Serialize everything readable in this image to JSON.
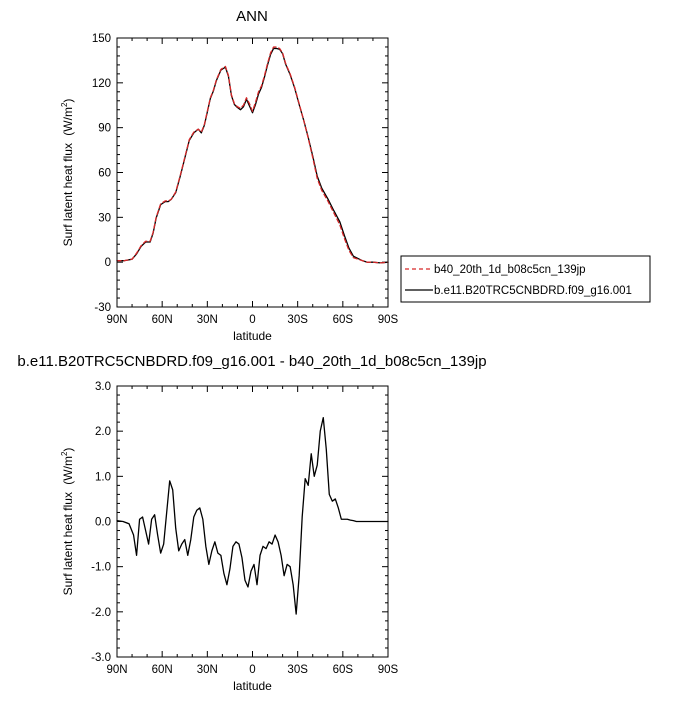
{
  "chart_data": [
    {
      "type": "line",
      "title": "ANN",
      "xlabel": "latitude",
      "ylabel": "Surf latent heat flux",
      "ylabel_unit_base": "(W/m",
      "ylabel_unit_exp": "2",
      "ylabel_unit_close": ")",
      "xlim": [
        90,
        -90
      ],
      "ylim": [
        -30,
        150
      ],
      "x_ticks": [
        90,
        60,
        30,
        0,
        -30,
        -60,
        -90
      ],
      "x_tick_labels": [
        "90N",
        "60N",
        "30N",
        "0",
        "30S",
        "60S",
        "90S"
      ],
      "y_ticks": [
        -30,
        0,
        30,
        60,
        90,
        120,
        150
      ],
      "y_tick_labels": [
        "-30",
        "0",
        "30",
        "60",
        "90",
        "120",
        "150"
      ],
      "legend": {
        "placement": "right",
        "border": true
      },
      "series": [
        {
          "name": "b40_20th_1d_b08c5cn_139jp",
          "color": "#d62728",
          "dash": "dashed",
          "x": [
            90,
            85,
            80,
            77,
            74,
            71,
            68,
            66,
            64,
            61,
            58,
            56,
            54,
            51,
            48,
            45,
            42,
            39,
            36,
            34,
            32,
            30,
            28,
            26,
            24,
            21,
            18,
            16,
            14,
            12,
            10,
            8,
            6,
            4,
            2,
            0,
            -2,
            -4,
            -6,
            -8,
            -10,
            -12,
            -14,
            -16,
            -18,
            -20,
            -22,
            -25,
            -28,
            -31,
            -34,
            -37,
            -40,
            -43,
            -46,
            -50,
            -54,
            -58,
            -61,
            -64,
            -67,
            -70,
            -73,
            -76,
            -80,
            -85,
            -90
          ],
          "y": [
            1,
            1,
            2,
            6,
            11,
            14,
            14,
            20,
            30,
            39,
            41,
            41,
            42,
            47,
            58,
            70,
            82,
            87,
            89,
            87,
            92,
            101,
            110,
            115,
            122,
            129,
            131,
            125,
            112,
            106,
            104,
            103,
            105,
            110,
            106,
            101,
            107,
            114,
            118,
            125,
            133,
            140,
            144,
            144,
            143,
            140,
            133,
            126,
            117,
            106,
            95,
            83,
            70,
            56,
            48,
            41,
            33,
            25,
            16,
            8,
            3,
            2,
            1,
            0,
            0,
            -0.5,
            0
          ]
        },
        {
          "name": "b.e11.B20TRC5CNBDRD.f09_g16.001",
          "color": "#000000",
          "dash": "solid",
          "x": [
            90,
            85,
            80,
            77,
            74,
            71,
            68,
            66,
            64,
            61,
            58,
            56,
            54,
            51,
            48,
            45,
            42,
            39,
            36,
            34,
            32,
            30,
            28,
            26,
            24,
            21,
            18,
            16,
            14,
            12,
            10,
            8,
            6,
            4,
            2,
            0,
            -2,
            -4,
            -6,
            -8,
            -10,
            -12,
            -14,
            -16,
            -18,
            -20,
            -22,
            -25,
            -28,
            -31,
            -34,
            -37,
            -40,
            -43,
            -46,
            -50,
            -54,
            -58,
            -61,
            -64,
            -67,
            -70,
            -73,
            -76,
            -80,
            -85,
            -90
          ],
          "y": [
            1,
            1,
            2,
            5.5,
            10.5,
            13.5,
            13.5,
            19.5,
            29.5,
            38.5,
            40.5,
            40.5,
            42,
            46.5,
            57.5,
            69.5,
            81.5,
            86.5,
            89,
            86.5,
            91.5,
            100.5,
            109.5,
            114.5,
            121.5,
            128.5,
            130.5,
            124.5,
            111.5,
            105.5,
            103.5,
            102,
            104,
            109,
            104.5,
            100,
            105.5,
            112.5,
            117,
            124,
            132,
            139,
            143,
            143,
            142.5,
            139.5,
            132.5,
            125.5,
            116.5,
            105.5,
            95,
            83.5,
            71,
            57.5,
            49.5,
            42.5,
            34.5,
            27,
            18,
            9.5,
            4,
            2.5,
            1,
            0,
            0,
            -0.5,
            0
          ]
        }
      ]
    },
    {
      "type": "line",
      "title": "b.e11.B20TRC5CNBDRD.f09_g16.001 - b40_20th_1d_b08c5cn_139jp",
      "xlabel": "latitude",
      "ylabel": "Surf latent heat flux",
      "ylabel_unit_base": "(W/m",
      "ylabel_unit_exp": "2",
      "ylabel_unit_close": ")",
      "xlim": [
        90,
        -90
      ],
      "ylim": [
        -3.0,
        3.0
      ],
      "x_ticks": [
        90,
        60,
        30,
        0,
        -30,
        -60,
        -90
      ],
      "x_tick_labels": [
        "90N",
        "60N",
        "30N",
        "0",
        "30S",
        "60S",
        "90S"
      ],
      "y_ticks": [
        -3.0,
        -2.0,
        -1.0,
        0.0,
        1.0,
        2.0,
        3.0
      ],
      "y_tick_labels": [
        "-3.0",
        "-2.0",
        "-1.0",
        "0.0",
        "1.0",
        "2.0",
        "3.0"
      ],
      "series": [
        {
          "color": "#000000",
          "dash": "solid",
          "x": [
            90,
            86,
            82,
            79,
            77,
            75,
            73,
            71,
            69,
            67,
            65,
            63,
            61,
            59,
            57,
            55,
            53,
            51,
            49,
            47,
            45,
            43,
            41,
            39,
            37,
            35,
            33,
            31,
            29,
            27,
            25,
            23,
            21,
            19,
            17,
            15,
            13,
            11,
            9,
            7,
            5,
            3,
            1,
            -1,
            -3,
            -5,
            -7,
            -9,
            -11,
            -13,
            -15,
            -17,
            -19,
            -21,
            -23,
            -25,
            -27,
            -29,
            -31,
            -33,
            -35,
            -37,
            -39,
            -41,
            -43,
            -45,
            -47,
            -49,
            -51,
            -53,
            -55,
            -57,
            -59,
            -61,
            -63,
            -65,
            -67,
            -69,
            -71,
            -73,
            -75,
            -77,
            -80,
            -84,
            -90
          ],
          "y": [
            0.02,
            0.0,
            -0.05,
            -0.3,
            -0.75,
            0.05,
            0.1,
            -0.2,
            -0.5,
            0.05,
            0.15,
            -0.3,
            -0.7,
            -0.5,
            0.2,
            0.9,
            0.7,
            -0.15,
            -0.65,
            -0.5,
            -0.4,
            -0.75,
            -0.4,
            0.1,
            0.25,
            0.3,
            0.05,
            -0.55,
            -0.95,
            -0.65,
            -0.45,
            -0.7,
            -0.75,
            -1.15,
            -1.4,
            -1.05,
            -0.55,
            -0.45,
            -0.5,
            -0.8,
            -1.3,
            -1.45,
            -1.1,
            -0.95,
            -1.4,
            -0.75,
            -0.55,
            -0.6,
            -0.45,
            -0.5,
            -0.3,
            -0.45,
            -0.75,
            -1.2,
            -0.95,
            -1.0,
            -1.4,
            -2.05,
            -1.2,
            0.1,
            0.95,
            0.8,
            1.5,
            1.0,
            1.25,
            2.0,
            2.3,
            1.6,
            0.6,
            0.45,
            0.5,
            0.3,
            0.05,
            0.05,
            0.05,
            0.03,
            0.02,
            0.0,
            0.0,
            0.0,
            0.0,
            0.0,
            0.0,
            0.0,
            0.0
          ]
        }
      ]
    }
  ]
}
